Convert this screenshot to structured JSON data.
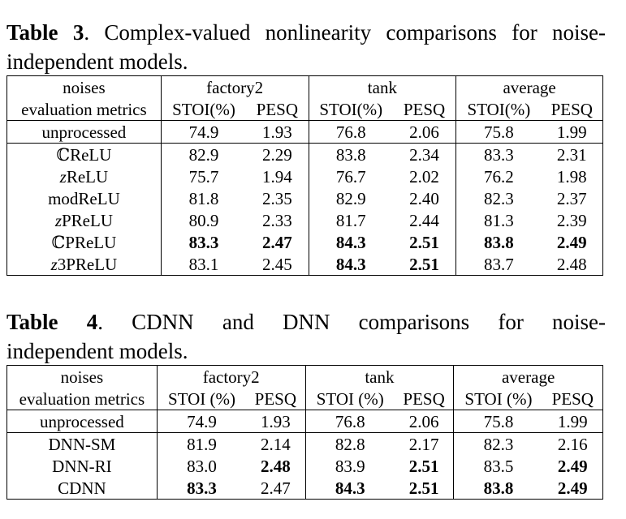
{
  "table3": {
    "label": "Table 3",
    "caption_line1": ". Complex-valued nonlinearity comparisons for noise-",
    "caption_line2": "independent models.",
    "header1": [
      "noises",
      "factory2",
      "tank",
      "average"
    ],
    "header2": [
      "evaluation metrics",
      "STOI(%)",
      "PESQ",
      "STOI(%)",
      "PESQ",
      "STOI(%)",
      "PESQ"
    ],
    "baseline": {
      "name": "unprocessed",
      "values": [
        "74.9",
        "1.93",
        "76.8",
        "2.06",
        "75.8",
        "1.99"
      ]
    },
    "rows": [
      {
        "prefix": "ℂ",
        "name": "ReLU",
        "values": [
          "82.9",
          "2.29",
          "83.8",
          "2.34",
          "83.3",
          "2.31"
        ],
        "bold": [
          false,
          false,
          false,
          false,
          false,
          false
        ]
      },
      {
        "prefix": "z",
        "name": "ReLU",
        "values": [
          "75.7",
          "1.94",
          "76.7",
          "2.02",
          "76.2",
          "1.98"
        ],
        "bold": [
          false,
          false,
          false,
          false,
          false,
          false
        ]
      },
      {
        "prefix": "",
        "name": "modReLU",
        "values": [
          "81.8",
          "2.35",
          "82.9",
          "2.40",
          "82.3",
          "2.37"
        ],
        "bold": [
          false,
          false,
          false,
          false,
          false,
          false
        ]
      },
      {
        "prefix": "z",
        "name": "PReLU",
        "values": [
          "80.9",
          "2.33",
          "81.7",
          "2.44",
          "81.3",
          "2.39"
        ],
        "bold": [
          false,
          false,
          false,
          false,
          false,
          false
        ]
      },
      {
        "prefix": "ℂ",
        "name": "PReLU",
        "values": [
          "83.3",
          "2.47",
          "84.3",
          "2.51",
          "83.8",
          "2.49"
        ],
        "bold": [
          true,
          true,
          true,
          true,
          true,
          true
        ]
      },
      {
        "prefix": "z",
        "name": "3PReLU",
        "values": [
          "83.1",
          "2.45",
          "84.3",
          "2.51",
          "83.7",
          "2.48"
        ],
        "bold": [
          false,
          false,
          true,
          true,
          false,
          false
        ]
      }
    ]
  },
  "table4": {
    "label": "Table 4",
    "caption_line1": ". CDNN and DNN comparisons for noise-",
    "caption_line2": "independent models.",
    "header1": [
      "noises",
      "factory2",
      "tank",
      "average"
    ],
    "header2": [
      "evaluation metrics",
      "STOI (%)",
      "PESQ",
      "STOI (%)",
      "PESQ",
      "STOI (%)",
      "PESQ"
    ],
    "baseline": {
      "name": "unprocessed",
      "values": [
        "74.9",
        "1.93",
        "76.8",
        "2.06",
        "75.8",
        "1.99"
      ]
    },
    "rows": [
      {
        "prefix": "",
        "name": "DNN-SM",
        "values": [
          "81.9",
          "2.14",
          "82.8",
          "2.17",
          "82.3",
          "2.16"
        ],
        "bold": [
          false,
          false,
          false,
          false,
          false,
          false
        ]
      },
      {
        "prefix": "",
        "name": "DNN-RI",
        "values": [
          "83.0",
          "2.48",
          "83.9",
          "2.51",
          "83.5",
          "2.49"
        ],
        "bold": [
          false,
          true,
          false,
          true,
          false,
          true
        ]
      },
      {
        "prefix": "",
        "name": "CDNN",
        "values": [
          "83.3",
          "2.47",
          "84.3",
          "2.51",
          "83.8",
          "2.49"
        ],
        "bold": [
          true,
          false,
          true,
          true,
          true,
          true
        ]
      }
    ]
  }
}
